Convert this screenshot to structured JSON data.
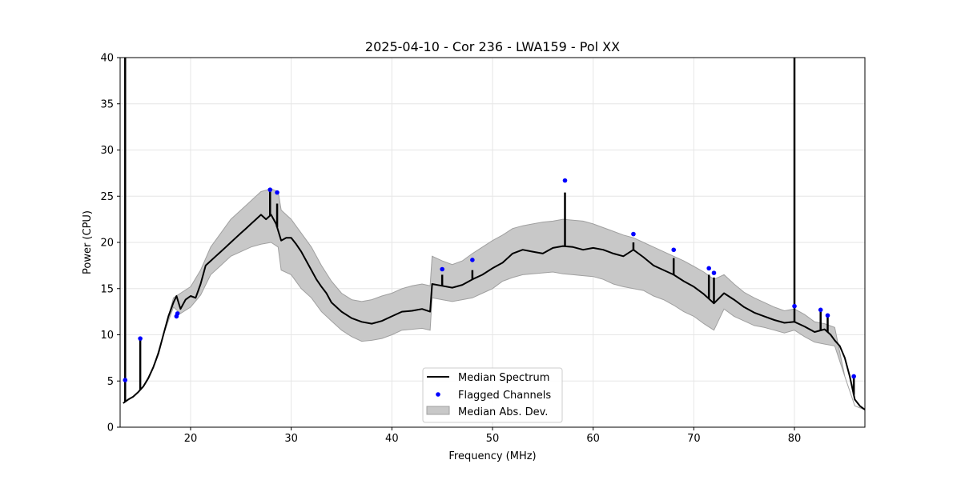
{
  "chart_data": {
    "type": "line",
    "title": "2025-04-10 - Cor 236 - LWA159 - Pol XX",
    "xlabel": "Frequency (MHz)",
    "ylabel": "Power (CPU)",
    "xlim": [
      13,
      87
    ],
    "ylim": [
      0,
      40
    ],
    "xticks": [
      20,
      30,
      40,
      50,
      60,
      70,
      80
    ],
    "yticks": [
      0,
      5,
      10,
      15,
      20,
      25,
      30,
      35,
      40
    ],
    "grid": true,
    "legend_position": "bottom-center",
    "colors": {
      "median": "#000000",
      "flagged": "#0000ff",
      "mad_fill": "#c8c8c8",
      "mad_edge": "#a0a0a0"
    },
    "series": [
      {
        "name": "Median Spectrum",
        "x": [
          13.3,
          13.8,
          14.3,
          14.8,
          15.3,
          15.8,
          16.3,
          16.8,
          17.3,
          17.8,
          18.3,
          18.6,
          19.0,
          19.5,
          20.0,
          20.5,
          21.0,
          21.5,
          22.0,
          22.5,
          23.0,
          23.5,
          24.0,
          24.5,
          25.0,
          25.5,
          26.0,
          26.5,
          27.0,
          27.5,
          28.0,
          28.5,
          29.0,
          29.5,
          30.0,
          30.5,
          31.0,
          31.5,
          32.0,
          32.5,
          33.0,
          33.5,
          34.0,
          35.0,
          36.0,
          37.0,
          38.0,
          39.0,
          40.0,
          41.0,
          42.0,
          43.0,
          43.8,
          44.0,
          45.0,
          46.0,
          47.0,
          48.0,
          49.0,
          50.0,
          51.0,
          52.0,
          53.0,
          54.0,
          55.0,
          56.0,
          57.0,
          58.0,
          59.0,
          60.0,
          61.0,
          62.0,
          63.0,
          64.0,
          65.0,
          66.0,
          67.0,
          68.0,
          69.0,
          70.0,
          71.0,
          72.0,
          73.0,
          74.0,
          75.0,
          76.0,
          77.0,
          78.0,
          79.0,
          80.0,
          81.0,
          82.0,
          83.0,
          83.6,
          84.0,
          84.5,
          85.0,
          85.5,
          86.0,
          86.5,
          87.0
        ],
        "values": [
          2.6,
          3.0,
          3.3,
          3.8,
          4.4,
          5.3,
          6.5,
          8.0,
          10.0,
          12.0,
          13.5,
          14.2,
          12.8,
          13.8,
          14.2,
          14.0,
          15.5,
          17.5,
          18.0,
          18.5,
          19.0,
          19.5,
          20.0,
          20.5,
          21.0,
          21.5,
          22.0,
          22.5,
          23.0,
          22.5,
          23.0,
          22.0,
          20.2,
          20.5,
          20.5,
          19.8,
          19.0,
          18.0,
          17.0,
          16.0,
          15.2,
          14.5,
          13.5,
          12.5,
          11.8,
          11.4,
          11.2,
          11.5,
          12.0,
          12.5,
          12.6,
          12.8,
          12.5,
          15.5,
          15.3,
          15.1,
          15.4,
          16.0,
          16.5,
          17.2,
          17.8,
          18.8,
          19.2,
          19.0,
          18.8,
          19.4,
          19.6,
          19.5,
          19.2,
          19.4,
          19.2,
          18.8,
          18.5,
          19.2,
          18.4,
          17.5,
          17.0,
          16.5,
          15.8,
          15.2,
          14.4,
          13.4,
          14.5,
          13.8,
          13.0,
          12.4,
          12.0,
          11.6,
          11.3,
          11.4,
          10.9,
          10.3,
          10.6,
          10.0,
          9.4,
          8.8,
          7.5,
          5.5,
          3.0,
          2.3,
          1.9
        ]
      },
      {
        "name": "Median Abs. Dev.",
        "x": [
          13.3,
          14.3,
          15.3,
          16.3,
          17.3,
          18.3,
          19.0,
          20.0,
          21.0,
          22.0,
          23.0,
          24.0,
          25.0,
          26.0,
          27.0,
          28.0,
          28.7,
          29.0,
          30.0,
          31.0,
          32.0,
          33.0,
          34.0,
          35.0,
          36.0,
          37.0,
          38.0,
          39.0,
          40.0,
          41.0,
          42.0,
          43.0,
          43.8,
          44.0,
          45.0,
          46.0,
          47.0,
          48.0,
          49.0,
          50.0,
          51.0,
          52.0,
          53.0,
          54.0,
          55.0,
          56.0,
          57.0,
          58.0,
          59.0,
          60.0,
          61.0,
          62.0,
          63.0,
          64.0,
          65.0,
          66.0,
          67.0,
          68.0,
          69.0,
          70.0,
          71.0,
          72.0,
          73.0,
          74.0,
          75.0,
          76.0,
          77.0,
          78.0,
          79.0,
          80.0,
          81.0,
          82.0,
          83.0,
          84.0,
          85.0,
          86.0,
          87.0
        ],
        "lower": [
          2.6,
          3.3,
          4.4,
          6.5,
          10.0,
          13.0,
          12.3,
          13.0,
          14.3,
          16.5,
          17.5,
          18.5,
          19.0,
          19.5,
          19.8,
          20.0,
          19.5,
          17.0,
          16.5,
          15.0,
          14.0,
          12.5,
          11.5,
          10.5,
          9.8,
          9.3,
          9.4,
          9.6,
          10.0,
          10.5,
          10.6,
          10.7,
          10.5,
          14.0,
          13.8,
          13.6,
          13.8,
          14.0,
          14.5,
          15.0,
          15.8,
          16.2,
          16.5,
          16.6,
          16.7,
          16.8,
          16.6,
          16.5,
          16.4,
          16.3,
          16.0,
          15.5,
          15.2,
          15.0,
          14.8,
          14.2,
          13.8,
          13.2,
          12.5,
          12.0,
          11.2,
          10.5,
          12.8,
          12.0,
          11.5,
          11.0,
          10.8,
          10.5,
          10.2,
          10.5,
          9.8,
          9.2,
          9.0,
          8.8,
          5.5,
          2.3,
          1.9
        ],
        "upper": [
          2.6,
          3.3,
          4.4,
          6.5,
          10.0,
          14.0,
          14.5,
          15.2,
          17.0,
          19.5,
          21.0,
          22.5,
          23.5,
          24.5,
          25.5,
          25.8,
          25.5,
          23.5,
          22.5,
          21.0,
          19.5,
          17.5,
          15.8,
          14.5,
          13.8,
          13.6,
          13.8,
          14.2,
          14.5,
          15.0,
          15.3,
          15.5,
          15.3,
          18.5,
          18.0,
          17.6,
          18.0,
          18.8,
          19.5,
          20.2,
          20.8,
          21.5,
          21.8,
          22.0,
          22.2,
          22.3,
          22.5,
          22.4,
          22.3,
          22.0,
          21.6,
          21.2,
          20.8,
          20.5,
          20.0,
          19.5,
          19.0,
          18.5,
          18.0,
          17.4,
          16.8,
          16.0,
          16.5,
          15.5,
          14.6,
          14.0,
          13.5,
          13.0,
          12.6,
          12.8,
          12.2,
          11.4,
          11.2,
          10.8,
          5.5,
          2.3,
          1.9
        ]
      },
      {
        "name": "Flagged Channels",
        "x": [
          13.5,
          15.0,
          18.6,
          18.7,
          27.9,
          28.6,
          45.0,
          48.0,
          57.2,
          64.0,
          68.0,
          71.5,
          72.0,
          80.0,
          82.6,
          83.3,
          85.9
        ],
        "values": [
          5.1,
          9.6,
          12.0,
          12.3,
          25.7,
          25.4,
          17.1,
          18.1,
          26.7,
          20.9,
          19.2,
          17.2,
          16.7,
          13.1,
          12.7,
          12.1,
          5.5
        ]
      }
    ],
    "spikes": {
      "x": [
        13.5,
        15.0,
        27.9,
        28.6,
        45.0,
        48.0,
        57.2,
        64.0,
        68.0,
        71.5,
        72.0,
        80.0,
        82.6,
        83.3,
        85.9
      ],
      "values": [
        40,
        9.6,
        25.7,
        24.2,
        16.5,
        17.0,
        25.4,
        20.0,
        18.3,
        16.5,
        16.2,
        40,
        12.7,
        12.1,
        5.5
      ]
    },
    "legend": [
      "Median Spectrum",
      "Flagged Channels",
      "Median Abs. Dev."
    ]
  }
}
